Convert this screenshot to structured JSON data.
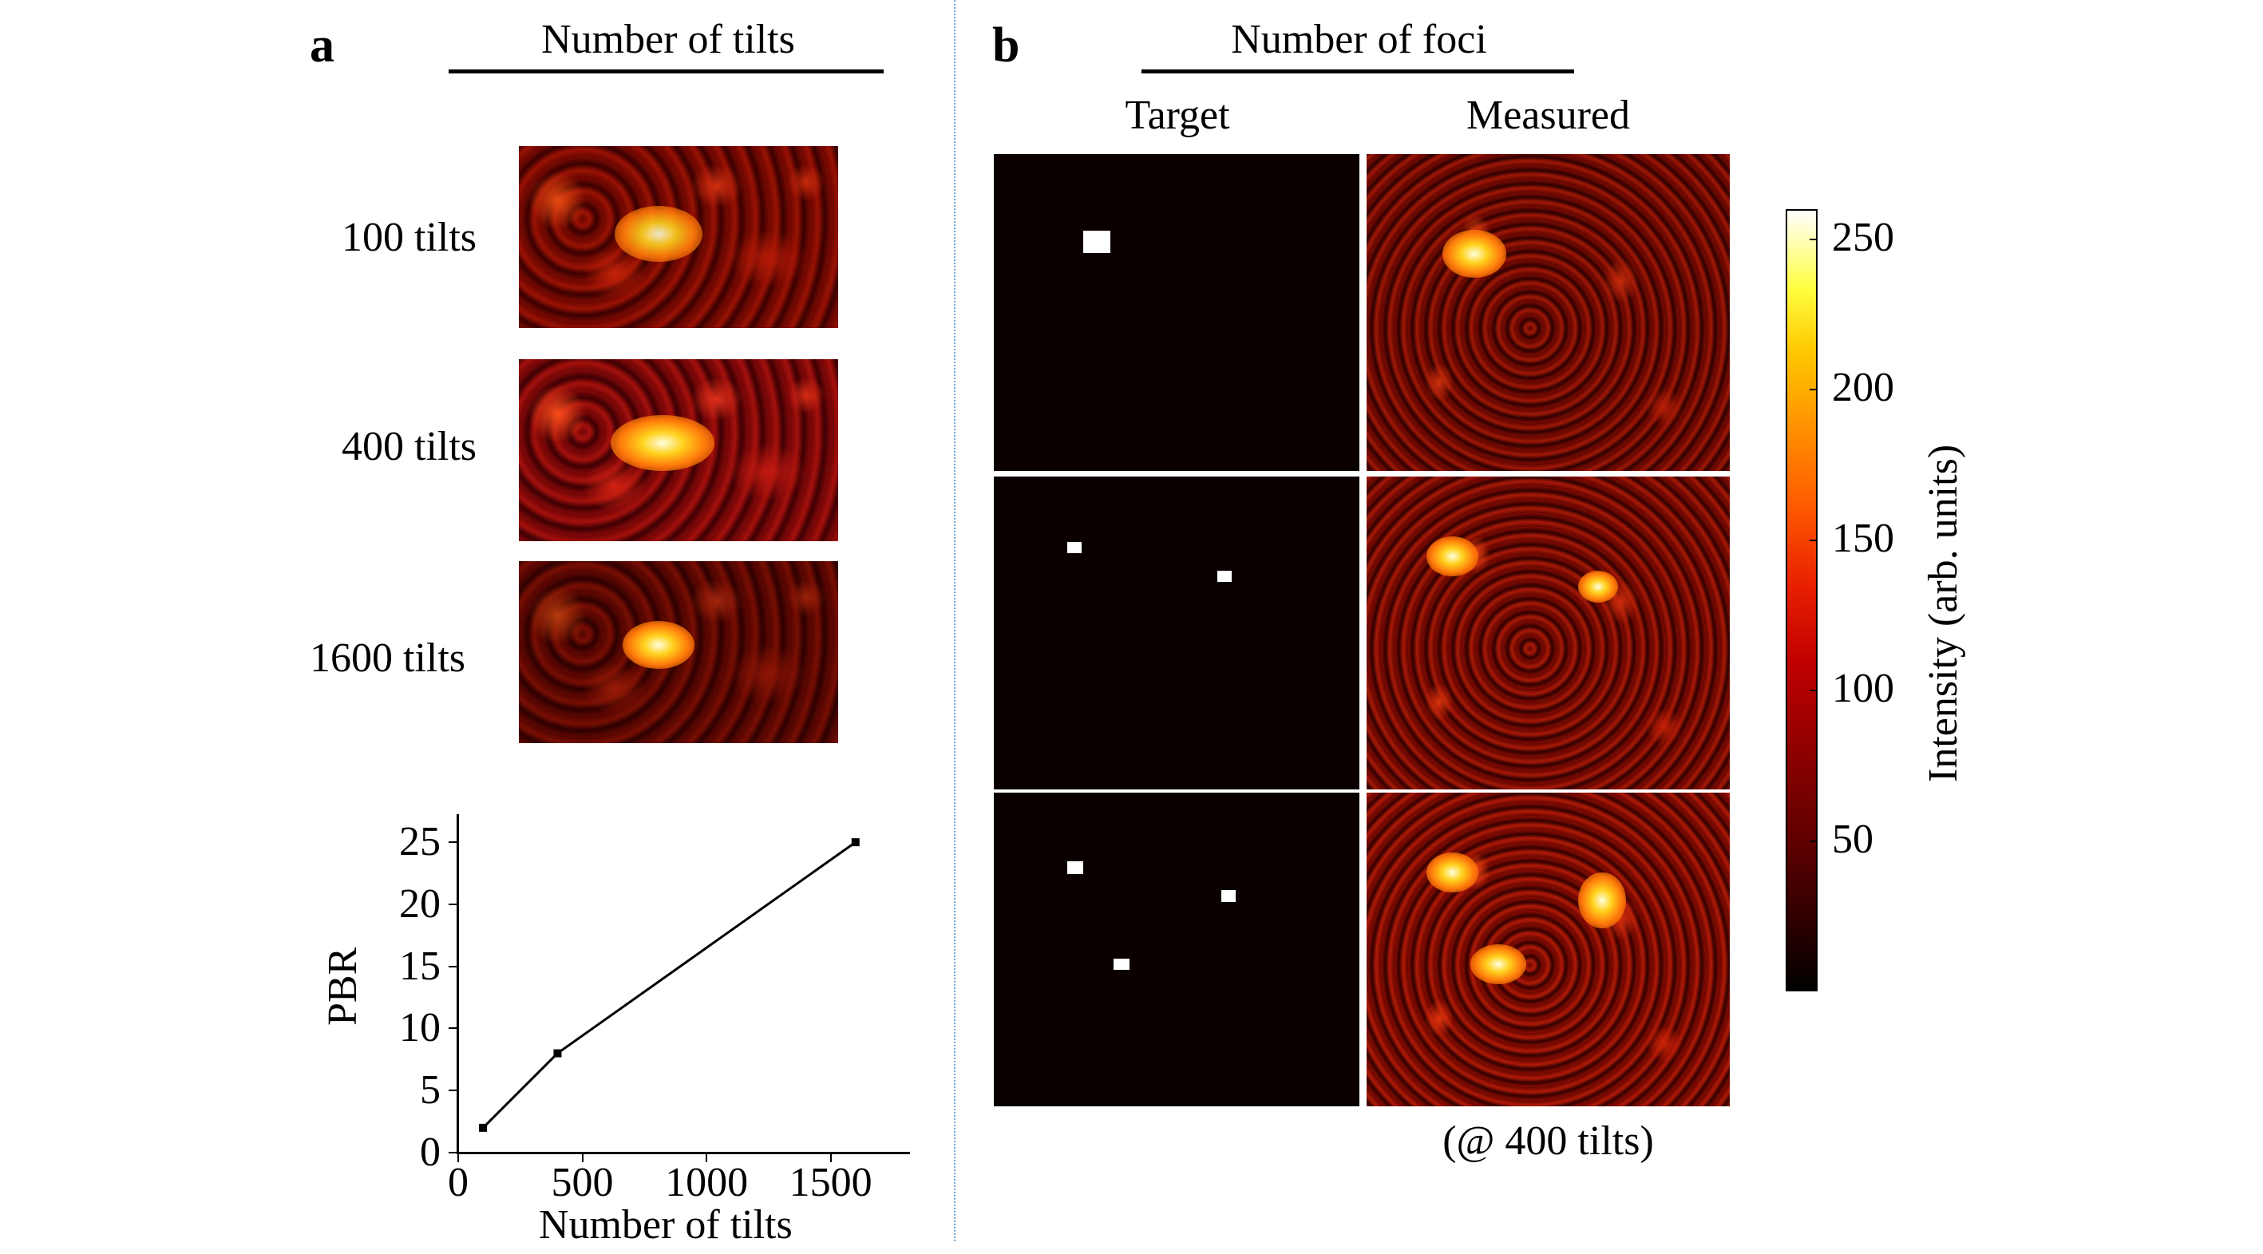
{
  "panel_a": {
    "letter": "a",
    "header": "Number of tilts",
    "rows": [
      {
        "label": "100 tilts"
      },
      {
        "label": "400 tilts"
      },
      {
        "label": "1600 tilts"
      }
    ]
  },
  "panel_b": {
    "letter": "b",
    "header": "Number of foci",
    "col_target": "Target",
    "col_measured": "Measured",
    "footnote": "(@ 400 tilts)",
    "colorbar": {
      "label": "Intensity (arb. units)",
      "ticks": [
        "250",
        "200",
        "150",
        "100",
        "50"
      ],
      "tick_values": [
        250,
        200,
        150,
        100,
        50
      ],
      "range": [
        0,
        260
      ],
      "colormap": "hot"
    }
  },
  "chart_data": {
    "type": "line",
    "x": [
      100,
      400,
      1600
    ],
    "y": [
      2,
      8,
      25
    ],
    "xlabel": "Number of tilts",
    "ylabel": "PBR",
    "xlim": [
      0,
      1800
    ],
    "ylim": [
      0,
      27
    ],
    "xticks": [
      0,
      500,
      1000,
      1500
    ],
    "xtick_labels": [
      "0",
      "500",
      "1000",
      "1500"
    ],
    "yticks": [
      0,
      5,
      10,
      15,
      20,
      25
    ],
    "ytick_labels": [
      "0",
      "5",
      "10",
      "15",
      "20",
      "25"
    ],
    "grid": false,
    "marker": "square",
    "color": "#000000"
  }
}
